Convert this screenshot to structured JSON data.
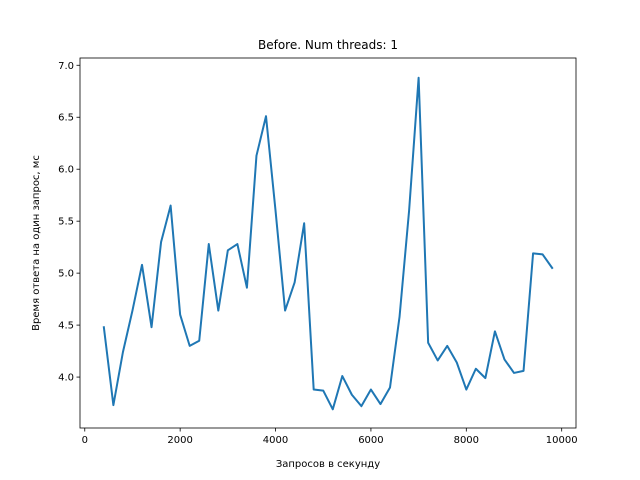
{
  "chart_data": {
    "type": "line",
    "title": "Before. Num threads: 1",
    "xlabel": "Запросов в секунду",
    "ylabel": "Время ответа на один запрос, мс",
    "xlim": [
      -100,
      10300
    ],
    "ylim": [
      3.51,
      7.07
    ],
    "grid": false,
    "legend": "none",
    "x_ticks": [
      0,
      2000,
      4000,
      6000,
      8000,
      10000
    ],
    "x_tick_labels": [
      "0",
      "2000",
      "4000",
      "6000",
      "8000",
      "10000"
    ],
    "y_ticks": [
      4.0,
      4.5,
      5.0,
      5.5,
      6.0,
      6.5,
      7.0
    ],
    "y_tick_labels": [
      "4.0",
      "4.5",
      "5.0",
      "5.5",
      "6.0",
      "6.5",
      "7.0"
    ],
    "series": [
      {
        "color": "#1f77b4",
        "x": [
          400,
          600,
          800,
          1000,
          1200,
          1400,
          1600,
          1800,
          2000,
          2200,
          2400,
          2600,
          2800,
          3000,
          3200,
          3400,
          3600,
          3800,
          4000,
          4200,
          4400,
          4600,
          4800,
          5000,
          5200,
          5400,
          5600,
          5800,
          6000,
          6200,
          6400,
          6600,
          6800,
          7000,
          7200,
          7400,
          7600,
          7800,
          8000,
          8200,
          8400,
          8600,
          8800,
          9000,
          9200,
          9400,
          9600,
          9800
        ],
        "y": [
          4.48,
          3.73,
          4.24,
          4.64,
          5.08,
          4.48,
          5.3,
          5.65,
          4.6,
          4.3,
          4.35,
          5.28,
          4.64,
          5.22,
          5.28,
          4.86,
          6.13,
          6.51,
          5.6,
          4.64,
          4.91,
          5.48,
          3.88,
          3.87,
          3.69,
          4.01,
          3.83,
          3.72,
          3.88,
          3.74,
          3.9,
          4.58,
          5.6,
          6.88,
          4.33,
          4.16,
          4.3,
          4.14,
          3.88,
          4.08,
          3.99,
          4.44,
          4.17,
          4.04,
          4.06,
          5.19,
          5.18,
          5.05
        ]
      }
    ]
  }
}
